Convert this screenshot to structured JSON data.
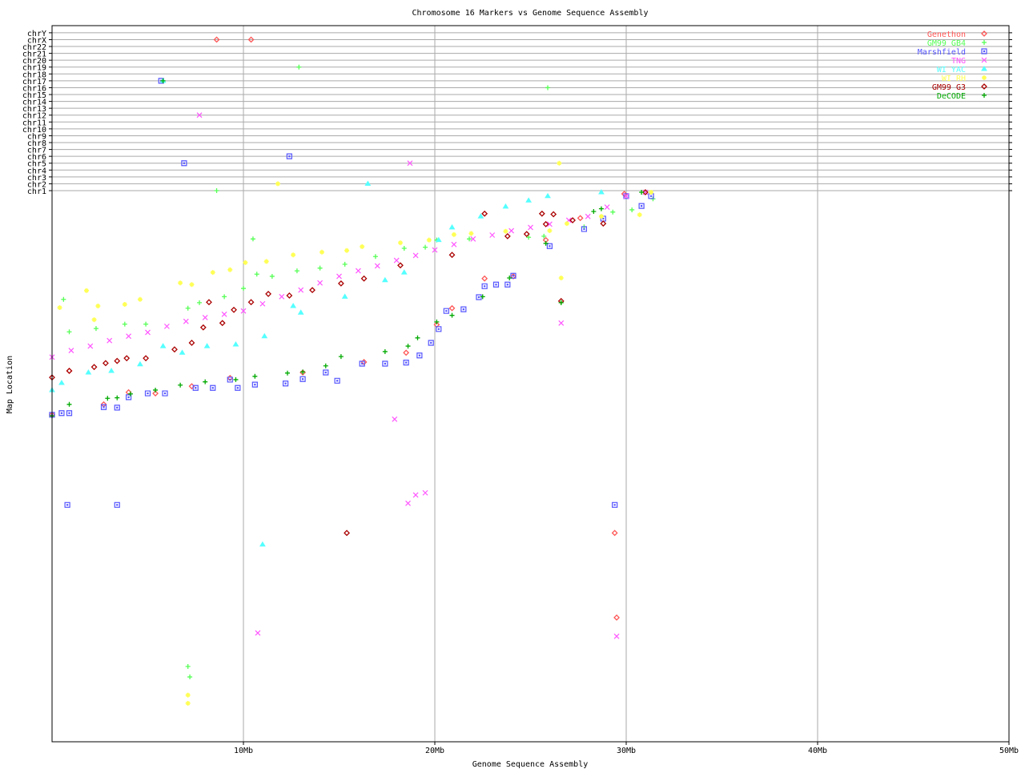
{
  "chart_data": {
    "type": "scatter",
    "title": "Chromosome 16 Markers vs Genome Sequence Assembly",
    "xlabel": "Genome Sequence Assembly",
    "ylabel": "Map Location",
    "xlim": [
      0,
      50
    ],
    "x_unit": "Mb",
    "x_ticks": [
      "10Mb",
      "20Mb",
      "30Mb",
      "40Mb",
      "50Mb"
    ],
    "x_tick_values": [
      10,
      20,
      30,
      40,
      50
    ],
    "ylim": [
      0,
      100
    ],
    "y_note": "chr16 map location axis has no printed ticks; values are relative positions along the map",
    "chromosome_rows": [
      "chr1",
      "chr2",
      "chr3",
      "chr4",
      "chr5",
      "chr6",
      "chr7",
      "chr8",
      "chr9",
      "chr10",
      "chr11",
      "chr12",
      "chr13",
      "chr14",
      "chr15",
      "chr16",
      "chr17",
      "chr18",
      "chr19",
      "chr20",
      "chr21",
      "chr22",
      "chrX",
      "chrY"
    ],
    "grid": true,
    "legend_position": "top-right",
    "series": [
      {
        "name": "Genethon",
        "symbol": "diamond",
        "color": "#ff5555",
        "points": [
          [
            0,
            59.5
          ],
          [
            0.9,
            67.5
          ],
          [
            2.7,
            61.4
          ],
          [
            4,
            63.6
          ],
          [
            5.4,
            63.4
          ],
          [
            7.3,
            64.7
          ],
          [
            9.3,
            66.2
          ],
          [
            13.1,
            67.2
          ],
          [
            16.3,
            69.1
          ],
          [
            18.5,
            70.8
          ],
          [
            20.1,
            75.9
          ],
          [
            20.9,
            78.9
          ],
          [
            22.6,
            84.3
          ],
          [
            24.1,
            84.7
          ],
          [
            25.8,
            91.3
          ],
          [
            27.6,
            95.3
          ],
          [
            29.9,
            99.7
          ],
          [
            29.4,
            38
          ],
          [
            29.5,
            22.6
          ]
        ],
        "other_chrom": [
          [
            8.6,
            "chrX"
          ],
          [
            10.4,
            "chrX"
          ]
        ]
      },
      {
        "name": "GM99 GB4",
        "symbol": "plus",
        "color": "#55ff55",
        "points": [
          [
            0.6,
            80.5
          ],
          [
            0.9,
            74.6
          ],
          [
            2.3,
            75.2
          ],
          [
            3.8,
            76
          ],
          [
            4.9,
            76
          ],
          [
            7.1,
            78.9
          ],
          [
            7.7,
            79.9
          ],
          [
            9,
            81
          ],
          [
            10,
            82.5
          ],
          [
            10.5,
            91.5
          ],
          [
            10.7,
            85.1
          ],
          [
            11.5,
            84.7
          ],
          [
            12.8,
            85.7
          ],
          [
            14,
            86.2
          ],
          [
            15.3,
            86.9
          ],
          [
            16.9,
            88.3
          ],
          [
            18.4,
            89.8
          ],
          [
            19.5,
            90
          ],
          [
            20.1,
            91.3
          ],
          [
            21.8,
            91.5
          ],
          [
            24.9,
            91.8
          ],
          [
            25.7,
            92
          ],
          [
            27.8,
            93.7
          ],
          [
            29.3,
            96.4
          ],
          [
            30.3,
            96.8
          ],
          [
            31.4,
            98.8
          ],
          [
            7.1,
            13.7
          ],
          [
            7.2,
            11.8
          ],
          [
            26.6,
            79.9
          ]
        ],
        "other_chrom": [
          [
            12.9,
            "chr19"
          ],
          [
            25.9,
            "chr16"
          ],
          [
            8.6,
            "chr1"
          ]
        ]
      },
      {
        "name": "Marshfield",
        "symbol": "square",
        "color": "#5555ff",
        "points": [
          [
            0,
            59.5
          ],
          [
            0.5,
            59.8
          ],
          [
            0.9,
            59.8
          ],
          [
            2.7,
            60.9
          ],
          [
            3.4,
            60.8
          ],
          [
            4,
            62.7
          ],
          [
            5,
            63.4
          ],
          [
            5.9,
            63.4
          ],
          [
            7.5,
            64.4
          ],
          [
            8.4,
            64.4
          ],
          [
            9.3,
            65.9
          ],
          [
            9.7,
            64.4
          ],
          [
            10.6,
            65
          ],
          [
            12.2,
            65.2
          ],
          [
            13.1,
            66
          ],
          [
            14.3,
            67.2
          ],
          [
            14.9,
            65.7
          ],
          [
            16.2,
            68.8
          ],
          [
            17.4,
            68.8
          ],
          [
            18.5,
            69
          ],
          [
            19.2,
            70.3
          ],
          [
            19.8,
            72.6
          ],
          [
            20.2,
            75.1
          ],
          [
            20.6,
            78.4
          ],
          [
            21.5,
            78.7
          ],
          [
            22.3,
            80.9
          ],
          [
            22.6,
            82.9
          ],
          [
            23.2,
            83.2
          ],
          [
            23.8,
            83.2
          ],
          [
            24.1,
            84.8
          ],
          [
            26,
            90.2
          ],
          [
            27.8,
            93.3
          ],
          [
            28.8,
            95.2
          ],
          [
            30,
            99.3
          ],
          [
            30.8,
            97.5
          ],
          [
            31.3,
            99.3
          ],
          [
            0.8,
            43.1
          ],
          [
            3.4,
            43.1
          ],
          [
            29.4,
            43.1
          ]
        ],
        "other_chrom": [
          [
            5.7,
            "chr17"
          ],
          [
            6.9,
            "chr5"
          ],
          [
            12.4,
            "chr6"
          ]
        ]
      },
      {
        "name": "TNG",
        "symbol": "x",
        "color": "#ff55ff",
        "points": [
          [
            0,
            70
          ],
          [
            1,
            71.2
          ],
          [
            2,
            72
          ],
          [
            3,
            73
          ],
          [
            4,
            73.8
          ],
          [
            5,
            74.5
          ],
          [
            6,
            75.6
          ],
          [
            7,
            76.5
          ],
          [
            8,
            77.2
          ],
          [
            9,
            77.8
          ],
          [
            10,
            78.4
          ],
          [
            11,
            79.7
          ],
          [
            12,
            81
          ],
          [
            13,
            82.2
          ],
          [
            14,
            83.5
          ],
          [
            15,
            84.7
          ],
          [
            16,
            85.7
          ],
          [
            17,
            86.6
          ],
          [
            18,
            87.6
          ],
          [
            19,
            88.5
          ],
          [
            20,
            89.5
          ],
          [
            21,
            90.5
          ],
          [
            22,
            91.5
          ],
          [
            23,
            92.2
          ],
          [
            24,
            93
          ],
          [
            25,
            93.6
          ],
          [
            26,
            94.2
          ],
          [
            27,
            94.9
          ],
          [
            28,
            95.6
          ],
          [
            29,
            97.3
          ],
          [
            30,
            99.3
          ],
          [
            31,
            100
          ],
          [
            17.9,
            58.7
          ],
          [
            19,
            44.9
          ],
          [
            18.6,
            43.4
          ],
          [
            19.5,
            45.3
          ],
          [
            10.75,
            19.8
          ],
          [
            29.5,
            19.2
          ],
          [
            26.6,
            76.2
          ]
        ],
        "other_chrom": [
          [
            7.7,
            "chr12"
          ],
          [
            18.7,
            "chr5"
          ]
        ]
      },
      {
        "name": "WI YAC",
        "symbol": "triangle",
        "color": "#55ffff",
        "points": [
          [
            0,
            64
          ],
          [
            0.5,
            65.3
          ],
          [
            1.9,
            67.2
          ],
          [
            3.1,
            67.5
          ],
          [
            4.6,
            68.7
          ],
          [
            5.8,
            72
          ],
          [
            6.8,
            70.8
          ],
          [
            8.1,
            72
          ],
          [
            9.6,
            72.3
          ],
          [
            11.1,
            73.8
          ],
          [
            12.6,
            79.3
          ],
          [
            13,
            78.1
          ],
          [
            15.3,
            81
          ],
          [
            17.4,
            84
          ],
          [
            18.4,
            85.4
          ],
          [
            20.2,
            91.3
          ],
          [
            20.9,
            93.6
          ],
          [
            22.4,
            95.6
          ],
          [
            23.7,
            97.4
          ],
          [
            24.9,
            98.5
          ],
          [
            25.9,
            99.3
          ],
          [
            28.7,
            100
          ],
          [
            11,
            35.9
          ]
        ],
        "other_chrom": [
          [
            16.5,
            "chr2"
          ],
          [
            5.8,
            "chr17"
          ]
        ]
      },
      {
        "name": "WI RH",
        "symbol": "star",
        "color": "#ffff55",
        "points": [
          [
            0.4,
            79
          ],
          [
            1.8,
            82.1
          ],
          [
            2.2,
            76.8
          ],
          [
            2.4,
            79.3
          ],
          [
            3.8,
            79.6
          ],
          [
            4.6,
            80.5
          ],
          [
            6.7,
            83.5
          ],
          [
            7.3,
            83.2
          ],
          [
            8.4,
            85.4
          ],
          [
            9.3,
            85.9
          ],
          [
            10.1,
            87.2
          ],
          [
            11.2,
            87.4
          ],
          [
            12.6,
            88.6
          ],
          [
            14.1,
            89.1
          ],
          [
            15.4,
            89.4
          ],
          [
            16.2,
            90.1
          ],
          [
            18.2,
            90.8
          ],
          [
            19.7,
            91.3
          ],
          [
            21,
            92.3
          ],
          [
            21.9,
            92.5
          ],
          [
            23.7,
            92.9
          ],
          [
            26,
            93
          ],
          [
            26.9,
            94.3
          ],
          [
            28.7,
            95.6
          ],
          [
            30.7,
            95.9
          ],
          [
            31.3,
            100
          ],
          [
            26.6,
            84.4
          ],
          [
            7.1,
            8.5
          ],
          [
            7.1,
            7
          ]
        ],
        "other_chrom": [
          [
            26.5,
            "chr5"
          ],
          [
            11.8,
            "chr2"
          ]
        ]
      },
      {
        "name": "GM99 G3",
        "symbol": "diamond",
        "color": "#aa0000",
        "points": [
          [
            0,
            66.3
          ],
          [
            0.9,
            67.5
          ],
          [
            2.2,
            68.2
          ],
          [
            2.8,
            68.9
          ],
          [
            3.4,
            69.3
          ],
          [
            3.9,
            69.8
          ],
          [
            4.9,
            69.8
          ],
          [
            6.4,
            71.4
          ],
          [
            7.3,
            72.6
          ],
          [
            7.9,
            75.4
          ],
          [
            8.2,
            80
          ],
          [
            8.9,
            76.2
          ],
          [
            9.5,
            78.6
          ],
          [
            10.4,
            80
          ],
          [
            11.3,
            81.5
          ],
          [
            12.4,
            81.2
          ],
          [
            13.6,
            82.2
          ],
          [
            15.1,
            83.4
          ],
          [
            16.3,
            84.3
          ],
          [
            18.2,
            86.7
          ],
          [
            20.9,
            88.6
          ],
          [
            22.6,
            96.1
          ],
          [
            23.8,
            92
          ],
          [
            24.8,
            92.4
          ],
          [
            25.6,
            96.1
          ],
          [
            26.2,
            96
          ],
          [
            25.8,
            94.2
          ],
          [
            27.2,
            94.9
          ],
          [
            28.8,
            94.3
          ],
          [
            31,
            100
          ],
          [
            26.6,
            80.2
          ],
          [
            15.4,
            38
          ]
        ],
        "other_chrom": []
      },
      {
        "name": "DeCODE",
        "symbol": "plus",
        "color": "#00aa00",
        "points": [
          [
            0,
            59.3
          ],
          [
            0.9,
            61.4
          ],
          [
            2.9,
            62.5
          ],
          [
            3.4,
            62.6
          ],
          [
            4.1,
            63.3
          ],
          [
            5.4,
            64
          ],
          [
            6.7,
            64.9
          ],
          [
            8.0,
            65.5
          ],
          [
            9.6,
            65.9
          ],
          [
            10.6,
            66.5
          ],
          [
            12.3,
            67.1
          ],
          [
            13.1,
            67.3
          ],
          [
            14.3,
            68.4
          ],
          [
            15.1,
            70.1
          ],
          [
            17.4,
            71
          ],
          [
            18.6,
            72
          ],
          [
            19.1,
            73.5
          ],
          [
            20.1,
            76.4
          ],
          [
            20.9,
            77.6
          ],
          [
            22.5,
            81
          ],
          [
            23.9,
            84.4
          ],
          [
            25.8,
            90.7
          ],
          [
            28.3,
            96.5
          ],
          [
            28.7,
            97
          ],
          [
            30.8,
            100
          ],
          [
            26.6,
            79.9
          ]
        ],
        "other_chrom": [
          [
            5.8,
            "chr17"
          ]
        ]
      }
    ]
  }
}
